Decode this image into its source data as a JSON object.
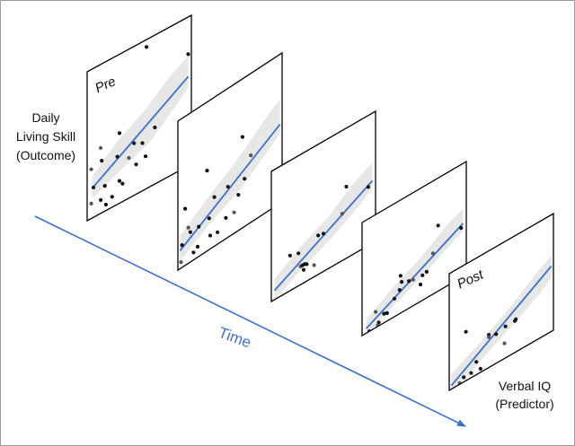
{
  "labels": {
    "outcome_line1": "Daily",
    "outcome_line2": "Living Skill",
    "outcome_line3": "(Outcome)",
    "predictor_line1": "Verbal IQ",
    "predictor_line2": "(Predictor)",
    "time": "Time",
    "panel_first": "Pre",
    "panel_last": "Post"
  },
  "colors": {
    "regression_line": "#3b6fd6",
    "time_arrow": "#3b6fd6",
    "confidence_band": "#e7e7e7",
    "points": "#111111",
    "panel_border": "#000000"
  },
  "panels": [
    {
      "id": "pre",
      "label_key": "panel_first",
      "points": [
        [
          0.57,
          0.05
        ],
        [
          0.97,
          0.25
        ],
        [
          0.13,
          0.56
        ],
        [
          0.31,
          0.53
        ],
        [
          0.65,
          0.62
        ],
        [
          0.14,
          0.65
        ],
        [
          0.45,
          0.65
        ],
        [
          0.04,
          0.67
        ],
        [
          0.29,
          0.68
        ],
        [
          0.53,
          0.68
        ],
        [
          0.06,
          0.8
        ],
        [
          0.31,
          0.85
        ],
        [
          0.4,
          0.73
        ],
        [
          0.47,
          0.8
        ],
        [
          0.56,
          0.78
        ],
        [
          0.17,
          0.83
        ],
        [
          0.34,
          0.88
        ],
        [
          0.04,
          0.9
        ],
        [
          0.13,
          0.91
        ],
        [
          0.24,
          0.93
        ],
        [
          0.18,
          0.96
        ]
      ],
      "line": [
        [
          0.05,
          0.8
        ],
        [
          0.97,
          0.4
        ]
      ],
      "band_lower": [
        [
          0.05,
          0.87
        ],
        [
          0.3,
          0.79
        ],
        [
          0.6,
          0.7
        ],
        [
          0.85,
          0.55
        ],
        [
          0.97,
          0.47
        ]
      ],
      "band_upper": [
        [
          0.05,
          0.72
        ],
        [
          0.3,
          0.57
        ],
        [
          0.55,
          0.47
        ],
        [
          0.8,
          0.33
        ],
        [
          0.97,
          0.26
        ]
      ]
    },
    {
      "id": "p2",
      "points": [
        [
          0.62,
          0.39
        ],
        [
          0.28,
          0.46
        ],
        [
          0.7,
          0.55
        ],
        [
          0.07,
          0.62
        ],
        [
          0.48,
          0.66
        ],
        [
          0.35,
          0.67
        ],
        [
          0.64,
          0.68
        ],
        [
          0.1,
          0.76
        ],
        [
          0.58,
          0.76
        ],
        [
          0.12,
          0.8
        ],
        [
          0.3,
          0.79
        ],
        [
          0.04,
          0.85
        ],
        [
          0.54,
          0.86
        ],
        [
          0.31,
          0.91
        ],
        [
          0.38,
          0.92
        ],
        [
          0.19,
          0.93
        ],
        [
          0.15,
          0.95
        ],
        [
          0.03,
          0.96
        ],
        [
          0.46,
          0.86
        ],
        [
          0.2,
          0.8
        ]
      ],
      "line": [
        [
          0.02,
          0.88
        ],
        [
          0.98,
          0.47
        ]
      ],
      "band_lower": [
        [
          0.02,
          0.95
        ],
        [
          0.3,
          0.83
        ],
        [
          0.6,
          0.73
        ],
        [
          0.85,
          0.6
        ],
        [
          0.98,
          0.53
        ]
      ],
      "band_upper": [
        [
          0.02,
          0.78
        ],
        [
          0.3,
          0.64
        ],
        [
          0.55,
          0.53
        ],
        [
          0.8,
          0.39
        ],
        [
          0.98,
          0.3
        ]
      ]
    },
    {
      "id": "p3",
      "points": [
        [
          0.72,
          0.45
        ],
        [
          0.93,
          0.55
        ],
        [
          0.68,
          0.64
        ],
        [
          0.45,
          0.7
        ],
        [
          0.18,
          0.73
        ],
        [
          0.5,
          0.71
        ],
        [
          0.26,
          0.75
        ],
        [
          0.28,
          0.86
        ],
        [
          0.3,
          0.86
        ],
        [
          0.32,
          0.86
        ],
        [
          0.34,
          0.87
        ],
        [
          0.31,
          0.9
        ],
        [
          0.41,
          0.91
        ],
        [
          0.3,
          1.02
        ],
        [
          0.38,
          1.03
        ],
        [
          0.15,
          1.08
        ],
        [
          0.28,
          1.07
        ],
        [
          0.06,
          1.1
        ]
      ],
      "line": [
        [
          0.03,
          0.93
        ],
        [
          0.97,
          0.52
        ]
      ],
      "band_lower": [
        [
          0.03,
          1.0
        ],
        [
          0.3,
          0.88
        ],
        [
          0.6,
          0.77
        ],
        [
          0.85,
          0.65
        ],
        [
          0.97,
          0.58
        ]
      ],
      "band_upper": [
        [
          0.03,
          0.84
        ],
        [
          0.3,
          0.7
        ],
        [
          0.55,
          0.6
        ],
        [
          0.8,
          0.45
        ],
        [
          0.97,
          0.38
        ]
      ]
    },
    {
      "id": "p4",
      "points": [
        [
          0.73,
          0.42
        ],
        [
          0.95,
          0.56
        ],
        [
          0.68,
          0.64
        ],
        [
          0.37,
          0.67
        ],
        [
          0.38,
          0.73
        ],
        [
          0.36,
          0.79
        ],
        [
          0.45,
          0.76
        ],
        [
          0.49,
          0.77
        ],
        [
          0.58,
          0.78
        ],
        [
          0.56,
          0.85
        ],
        [
          0.62,
          0.77
        ],
        [
          0.31,
          0.84
        ],
        [
          0.13,
          0.86
        ],
        [
          0.21,
          0.92
        ],
        [
          0.24,
          0.93
        ],
        [
          0.16,
          0.97
        ],
        [
          0.07,
          1.0
        ],
        [
          0.15,
          0.99
        ]
      ],
      "line": [
        [
          0.04,
          0.96
        ],
        [
          0.97,
          0.53
        ]
      ],
      "band_lower": [
        [
          0.04,
          1.02
        ],
        [
          0.3,
          0.9
        ],
        [
          0.6,
          0.78
        ],
        [
          0.85,
          0.65
        ],
        [
          0.97,
          0.6
        ]
      ],
      "band_upper": [
        [
          0.04,
          0.88
        ],
        [
          0.3,
          0.73
        ],
        [
          0.55,
          0.62
        ],
        [
          0.8,
          0.47
        ],
        [
          0.97,
          0.4
        ]
      ]
    },
    {
      "id": "post",
      "label_key": "panel_last",
      "points": [
        [
          0.16,
          0.58
        ],
        [
          0.38,
          0.72
        ],
        [
          0.38,
          0.74
        ],
        [
          0.45,
          0.75
        ],
        [
          0.54,
          0.73
        ],
        [
          0.64,
          0.72
        ],
        [
          0.63,
          0.73
        ],
        [
          0.53,
          0.87
        ],
        [
          0.26,
          0.89
        ],
        [
          0.3,
          0.97
        ],
        [
          0.14,
          0.96
        ],
        [
          0.21,
          0.96
        ],
        [
          0.1,
          0.99
        ],
        [
          0.17,
          1.01
        ],
        [
          0.06,
          1.03
        ],
        [
          0.03,
          1.09
        ],
        [
          0.21,
          1.06
        ]
      ],
      "line": [
        [
          0.02,
          0.97
        ],
        [
          0.98,
          0.44
        ]
      ],
      "band_lower": [
        [
          0.02,
          1.05
        ],
        [
          0.3,
          0.9
        ],
        [
          0.6,
          0.76
        ],
        [
          0.85,
          0.63
        ],
        [
          0.98,
          0.54
        ]
      ],
      "band_upper": [
        [
          0.02,
          0.87
        ],
        [
          0.3,
          0.74
        ],
        [
          0.55,
          0.61
        ],
        [
          0.8,
          0.45
        ],
        [
          0.98,
          0.35
        ]
      ]
    }
  ]
}
